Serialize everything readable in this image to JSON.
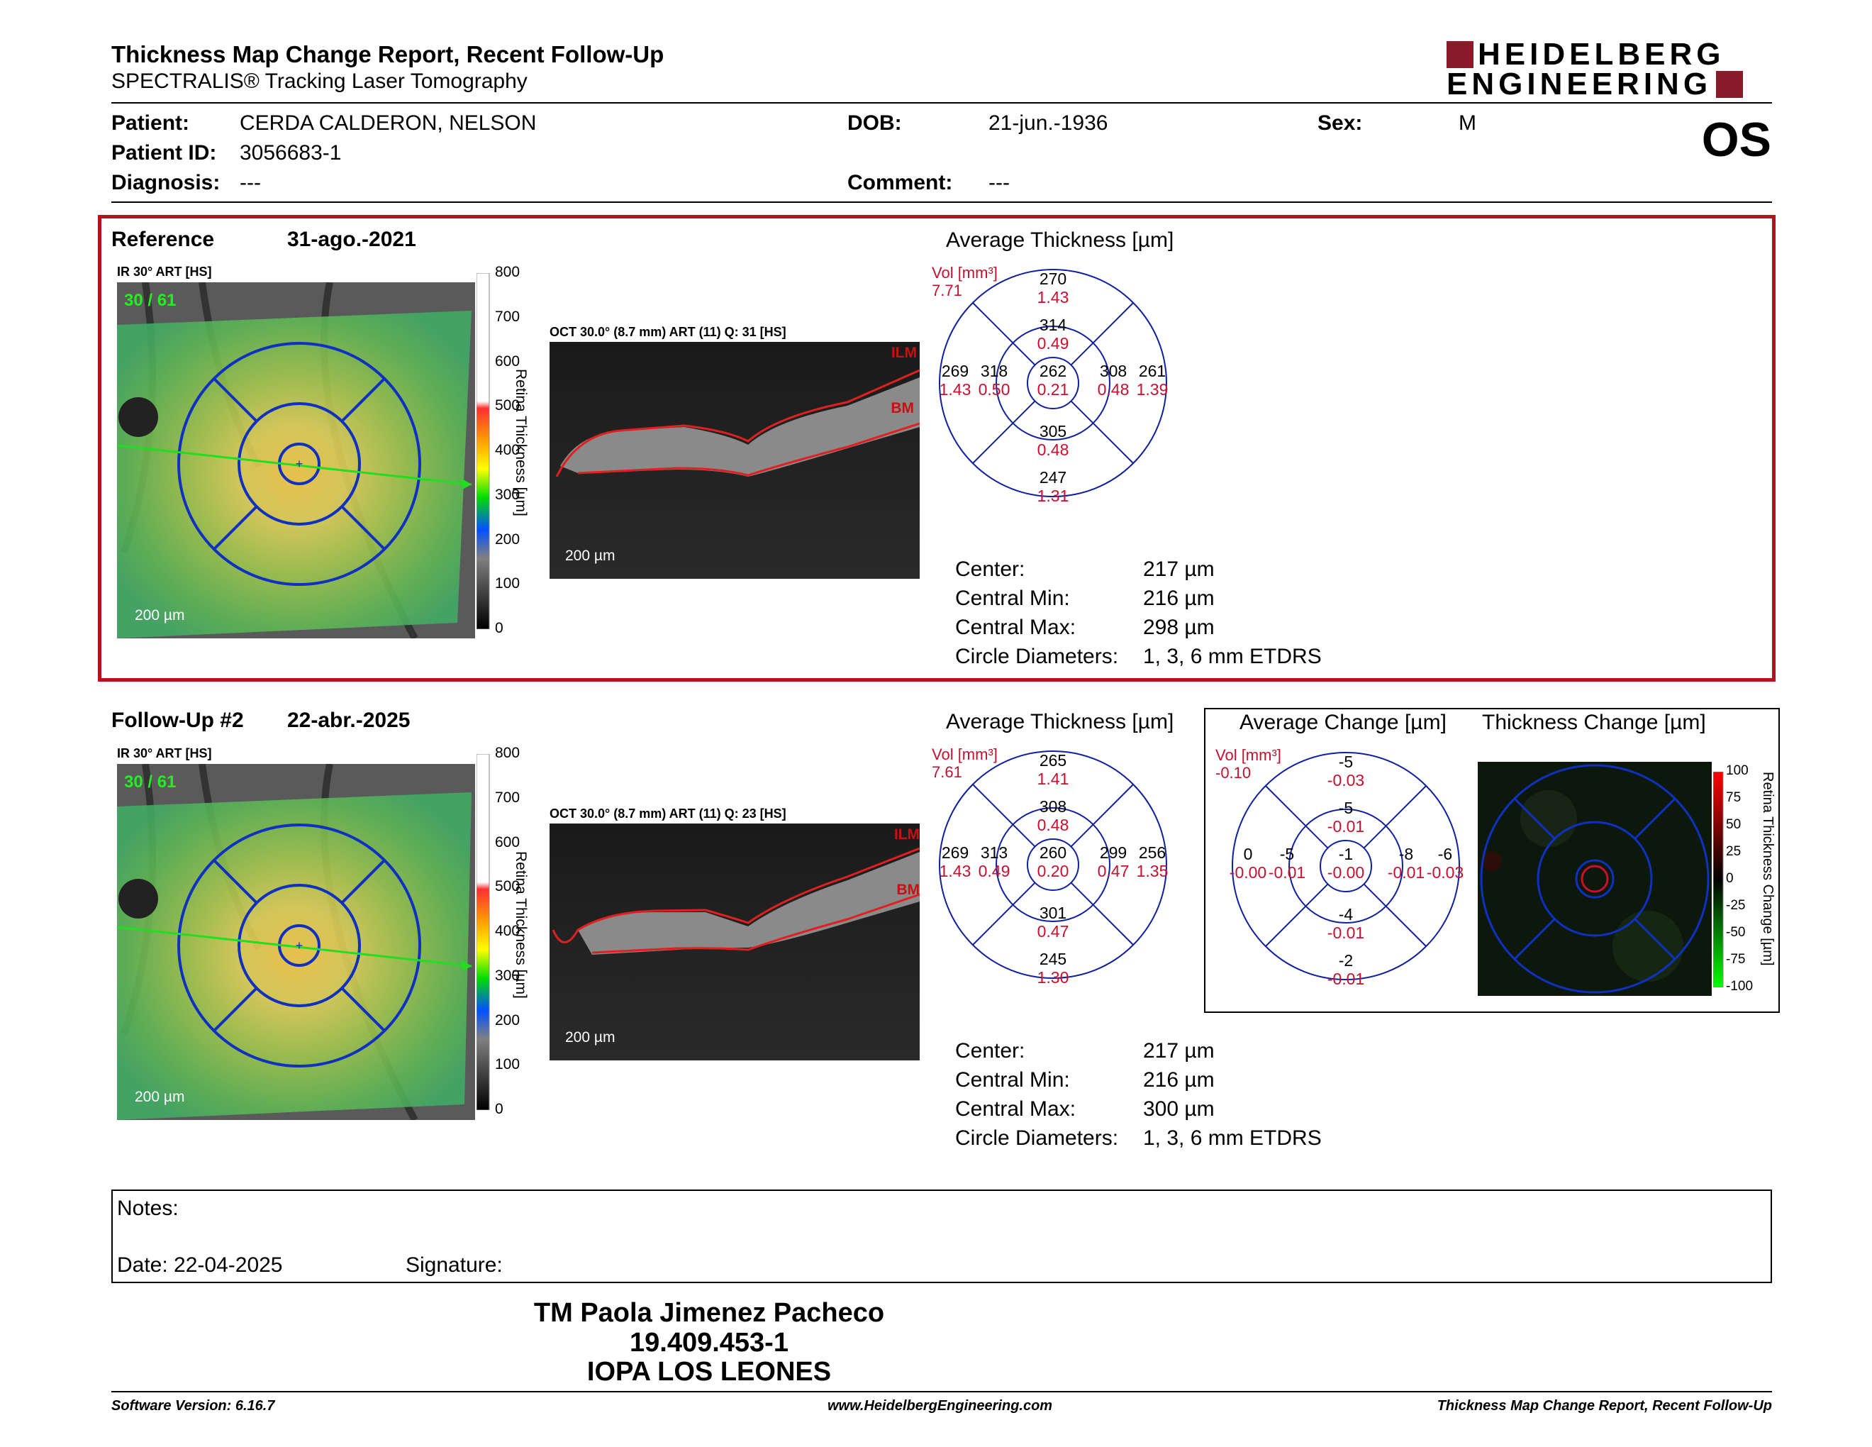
{
  "header": {
    "title": "Thickness Map Change Report, Recent Follow-Up",
    "subtitle": "SPECTRALIS® Tracking Laser Tomography",
    "brand_line1": "HEIDELBERG",
    "brand_line2": "ENGINEERING",
    "eye": "OS",
    "brand_color": "#8b1a2b"
  },
  "patient": {
    "patient_label": "Patient:",
    "patient_value": "CERDA CALDERON, NELSON",
    "id_label": "Patient ID:",
    "id_value": "3056683-1",
    "diag_label": "Diagnosis:",
    "diag_value": "---",
    "dob_label": "DOB:",
    "dob_value": "21-jun.-1936",
    "comment_label": "Comment:",
    "comment_value": "---",
    "sex_label": "Sex:",
    "sex_value": "M"
  },
  "reference": {
    "label": "Reference",
    "date": "31-ago.-2021",
    "ir_label": "IR 30° ART [HS]",
    "art_count": "30 / 61",
    "fundus_scale": "200 µm",
    "oct_label": "OCT 30.0° (8.7 mm) ART (11) Q: 31 [HS]",
    "oct_scale": "200 µm",
    "ilm": "ILM",
    "bm": "BM",
    "colorbar_title": "Retina Thickness [µm]",
    "colorbar_ticks": [
      "800",
      "700",
      "600",
      "500",
      "400",
      "300",
      "200",
      "100",
      "0"
    ],
    "avg_title": "Average Thickness [µm]",
    "vol_label": "Vol [mm³]",
    "vol_total": "7.71",
    "sectors": {
      "outer_top": [
        "270",
        "1.43"
      ],
      "inner_top": [
        "314",
        "0.49"
      ],
      "outer_left": [
        "269",
        "1.43"
      ],
      "inner_left": [
        "318",
        "0.50"
      ],
      "center": [
        "262",
        "0.21"
      ],
      "inner_right": [
        "308",
        "0.48"
      ],
      "outer_right": [
        "261",
        "1.39"
      ],
      "inner_bottom": [
        "305",
        "0.48"
      ],
      "outer_bottom": [
        "247",
        "1.31"
      ]
    },
    "stats": {
      "center_label": "Center:",
      "center_value": "217 µm",
      "min_label": "Central Min:",
      "min_value": "216 µm",
      "max_label": "Central Max:",
      "max_value": "298 µm",
      "diam_label": "Circle Diameters:",
      "diam_value": "1, 3, 6 mm ETDRS"
    }
  },
  "followup": {
    "label": "Follow-Up #2",
    "date": "22-abr.-2025",
    "ir_label": "IR 30° ART [HS]",
    "art_count": "30 / 61",
    "fundus_scale": "200 µm",
    "oct_label": "OCT 30.0° (8.7 mm) ART (11) Q: 23 [HS]",
    "oct_scale": "200 µm",
    "ilm": "ILM",
    "bm": "BM",
    "colorbar_title": "Retina Thickness [µm]",
    "colorbar_ticks": [
      "800",
      "700",
      "600",
      "500",
      "400",
      "300",
      "200",
      "100",
      "0"
    ],
    "avg_title": "Average Thickness [µm]",
    "vol_label": "Vol [mm³]",
    "vol_total": "7.61",
    "sectors": {
      "outer_top": [
        "265",
        "1.41"
      ],
      "inner_top": [
        "308",
        "0.48"
      ],
      "outer_left": [
        "269",
        "1.43"
      ],
      "inner_left": [
        "313",
        "0.49"
      ],
      "center": [
        "260",
        "0.20"
      ],
      "inner_right": [
        "299",
        "0.47"
      ],
      "outer_right": [
        "256",
        "1.35"
      ],
      "inner_bottom": [
        "301",
        "0.47"
      ],
      "outer_bottom": [
        "245",
        "1.30"
      ]
    },
    "stats": {
      "center_label": "Center:",
      "center_value": "217 µm",
      "min_label": "Central Min:",
      "min_value": "216 µm",
      "max_label": "Central Max:",
      "max_value": "300 µm",
      "diam_label": "Circle Diameters:",
      "diam_value": "1, 3, 6 mm ETDRS"
    }
  },
  "change": {
    "avg_title": "Average Change [µm]",
    "map_title": "Thickness Change [µm]",
    "vol_label": "Vol [mm³]",
    "vol_total": "-0.10",
    "sectors": {
      "outer_top": [
        "-5",
        "-0.03"
      ],
      "inner_top": [
        "-5",
        "-0.01"
      ],
      "outer_left": [
        "0",
        "-0.00"
      ],
      "inner_left": [
        "-5",
        "-0.01"
      ],
      "center": [
        "-1",
        "-0.00"
      ],
      "inner_right": [
        "-8",
        "-0.01"
      ],
      "outer_right": [
        "-6",
        "-0.03"
      ],
      "inner_bottom": [
        "-4",
        "-0.01"
      ],
      "outer_bottom": [
        "-2",
        "-0.01"
      ]
    },
    "colorbar_title": "Retina Thickness Change [µm]",
    "colorbar_ticks": [
      "100",
      "75",
      "50",
      "25",
      "0",
      "-25",
      "-50",
      "-75",
      "-100"
    ]
  },
  "notes": {
    "notes_label": "Notes:",
    "date_label": "Date: 22-04-2025",
    "signature_label": "Signature:"
  },
  "signature": {
    "name": "TM Paola Jimenez Pacheco",
    "rut": "19.409.453-1",
    "org": "IOPA LOS LEONES"
  },
  "footer": {
    "software": "Software Version: 6.16.7",
    "website": "www.HeidelbergEngineering.com",
    "report": "Thickness Map Change Report, Recent Follow-Up"
  }
}
